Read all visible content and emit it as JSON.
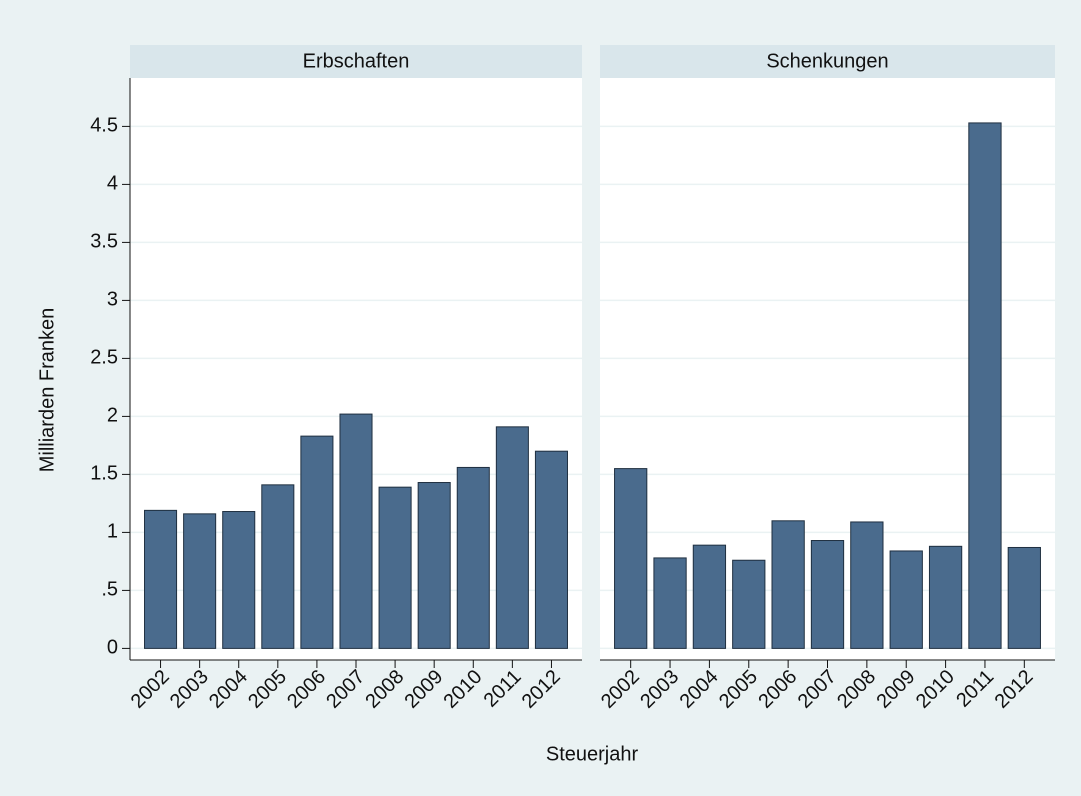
{
  "chart_data": {
    "type": "bar",
    "layout": "facet",
    "y_label": "Milliarden Franken",
    "x_label": "Steuerjahr",
    "categories": [
      "2002",
      "2003",
      "2004",
      "2005",
      "2006",
      "2007",
      "2008",
      "2009",
      "2010",
      "2011",
      "2012"
    ],
    "series": [
      {
        "name": "Erbschaften",
        "color": "#4a6b8d",
        "values": [
          1.19,
          1.16,
          1.18,
          1.41,
          1.83,
          2.02,
          1.39,
          1.43,
          1.56,
          1.91,
          1.7
        ]
      },
      {
        "name": "Schenkungen",
        "color": "#4a6b8d",
        "values": [
          1.55,
          0.78,
          0.89,
          0.76,
          1.1,
          0.93,
          1.09,
          0.84,
          0.88,
          4.53,
          0.87
        ]
      }
    ],
    "ylim": [
      -0.1,
      4.9
    ],
    "yticks": [
      0,
      {
        "value": 0.5,
        "label": ".5"
      },
      1,
      1.5,
      2,
      2.5,
      3,
      3.5,
      4,
      4.5
    ],
    "grid": true
  }
}
